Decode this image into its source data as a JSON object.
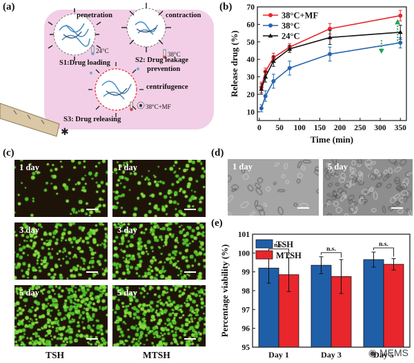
{
  "panels": {
    "a": "(a)",
    "b": "(b)",
    "c": "(c)",
    "d": "(d)",
    "e": "(e)"
  },
  "schematic": {
    "penetration": "penetration",
    "contraction": "contraction",
    "temp1": "24°C",
    "temp2": "38°C",
    "temp3": "38°C+MF",
    "s1": "S1:Drug loading",
    "s2a": "S2: Drug leakage",
    "s2b": "prevention",
    "centrifugence": "centrifugence",
    "s3": "S3: Drug releasing",
    "colors": {
      "bg": "#f2cfe6",
      "syringe": "#d9c7a6"
    }
  },
  "micrographs": {
    "labels": [
      "1 day",
      "3 day",
      "5 day"
    ],
    "columns": [
      "TSH",
      "MTSH"
    ],
    "d_labels": [
      "1 day",
      "5 day"
    ],
    "cell_color": "#7fdc3c"
  },
  "chart_data": [
    {
      "type": "line",
      "xlabel": "Time (min)",
      "ylabel": "Release drug (%)",
      "xlim": [
        -5,
        365
      ],
      "ylim": [
        5,
        70
      ],
      "xticks": [
        0,
        50,
        100,
        150,
        200,
        250,
        300,
        350
      ],
      "yticks": [
        10,
        20,
        30,
        40,
        50,
        60,
        70
      ],
      "legend_position": "top-left",
      "x": [
        5,
        15,
        35,
        75,
        175,
        350
      ],
      "series": [
        {
          "name": "38°C+MF",
          "color": "#e8262b",
          "values": [
            24,
            33,
            41,
            47,
            57.5,
            65
          ],
          "err": [
            3,
            2,
            2.5,
            2,
            3,
            3
          ]
        },
        {
          "name": "38°C",
          "color": "#2565ad",
          "values": [
            12,
            19,
            27.5,
            35,
            43,
            49.5
          ],
          "err": [
            2,
            3,
            4,
            4,
            4,
            3
          ]
        },
        {
          "name": "24°C",
          "color": "#111111",
          "values": [
            23,
            30,
            39,
            46,
            52.5,
            55.5
          ],
          "err": [
            3,
            3,
            3,
            2,
            4,
            4
          ]
        }
      ]
    },
    {
      "type": "bar",
      "ylabel": "Percentage viability (%)",
      "categories": [
        "Day 1",
        "Day 3",
        "Day 5"
      ],
      "ylim": [
        95,
        101
      ],
      "yticks": [
        95,
        96,
        97,
        98,
        99,
        100,
        101
      ],
      "legend_position": "top-left",
      "series": [
        {
          "name": "TSH",
          "color": "#1f5fa8",
          "values": [
            99.2,
            99.35,
            99.65
          ],
          "err": [
            0.8,
            0.45,
            0.4
          ]
        },
        {
          "name": "MTSH",
          "color": "#e8262b",
          "values": [
            98.85,
            98.75,
            99.4
          ],
          "err": [
            0.9,
            0.9,
            0.3
          ]
        }
      ],
      "annotations": [
        "n.s.",
        "n.s.",
        "n.s."
      ]
    }
  ],
  "watermark": "MEMS"
}
